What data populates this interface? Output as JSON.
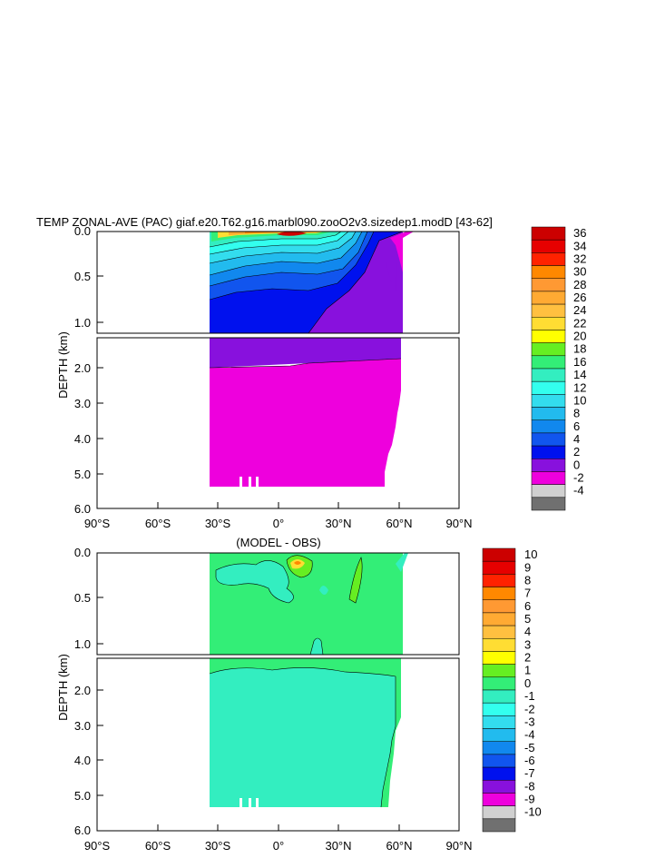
{
  "title": "TEMP ZONAL-AVE (PAC) giaf.e20.T62.g16.marbl090.zooO2v3.sizedep1.modD [43-62]",
  "subtitle": "(MODEL - OBS)",
  "ylabel": "DEPTH (km)",
  "xticks": [
    "90°S",
    "60°S",
    "30°S",
    "0°",
    "30°N",
    "60°N",
    "90°N"
  ],
  "yticks_upper": [
    "0.0",
    "0.5",
    "1.0"
  ],
  "yticks_lower": [
    "2.0",
    "3.0",
    "4.0",
    "5.0",
    "6.0"
  ],
  "chart_data": [
    {
      "type": "heatmap",
      "title": "TEMP ZONAL-AVE (PAC) giaf.e20.T62.g16.marbl090.zooO2v3.sizedep1.modD [43-62]",
      "xlabel": "",
      "ylabel": "DEPTH (km)",
      "x_ticks": [
        "90°S",
        "60°S",
        "30°S",
        "0°",
        "30°N",
        "60°N",
        "90°N"
      ],
      "xlim": [
        -90,
        90
      ],
      "ylim": [
        6.0,
        0.0
      ],
      "data_extent_lat": [
        -34,
        62
      ],
      "colorbar_levels": [
        "36",
        "34",
        "32",
        "30",
        "28",
        "26",
        "24",
        "22",
        "20",
        "18",
        "16",
        "14",
        "12",
        "10",
        "8",
        "6",
        "4",
        "2",
        "0",
        "-2",
        "-4"
      ],
      "colorbar_colors": [
        "#cc0000",
        "#e60000",
        "#ff2200",
        "#ff8800",
        "#ff9933",
        "#ffaa33",
        "#ffc040",
        "#ffdd33",
        "#ffff00",
        "#66ee22",
        "#33ee77",
        "#33eec0",
        "#33ffee",
        "#33ddee",
        "#22bbee",
        "#1188ee",
        "#1155ee",
        "#0011ee",
        "#8811dd",
        "#ee00dd",
        "#d0d0d0",
        "#707070"
      ],
      "grid": false
    },
    {
      "type": "heatmap",
      "title": "(MODEL - OBS)",
      "xlabel": "",
      "ylabel": "DEPTH (km)",
      "x_ticks": [
        "90°S",
        "60°S",
        "30°S",
        "0°",
        "30°N",
        "60°N",
        "90°N"
      ],
      "xlim": [
        -90,
        90
      ],
      "ylim": [
        6.0,
        0.0
      ],
      "data_extent_lat": [
        -34,
        62
      ],
      "colorbar_levels": [
        "10",
        "9",
        "8",
        "7",
        "6",
        "5",
        "4",
        "3",
        "2",
        "1",
        "0",
        "-1",
        "-2",
        "-3",
        "-4",
        "-5",
        "-6",
        "-7",
        "-8",
        "-9",
        "-10"
      ],
      "colorbar_colors": [
        "#cc0000",
        "#e60000",
        "#ff2200",
        "#ff8800",
        "#ff9933",
        "#ffaa33",
        "#ffc040",
        "#ffdd33",
        "#ffff00",
        "#66ee22",
        "#33ee77",
        "#33eec0",
        "#33ffee",
        "#33ddee",
        "#22bbee",
        "#1188ee",
        "#1155ee",
        "#0011ee",
        "#8811dd",
        "#ee00dd",
        "#d0d0d0",
        "#707070"
      ],
      "grid": false
    }
  ]
}
